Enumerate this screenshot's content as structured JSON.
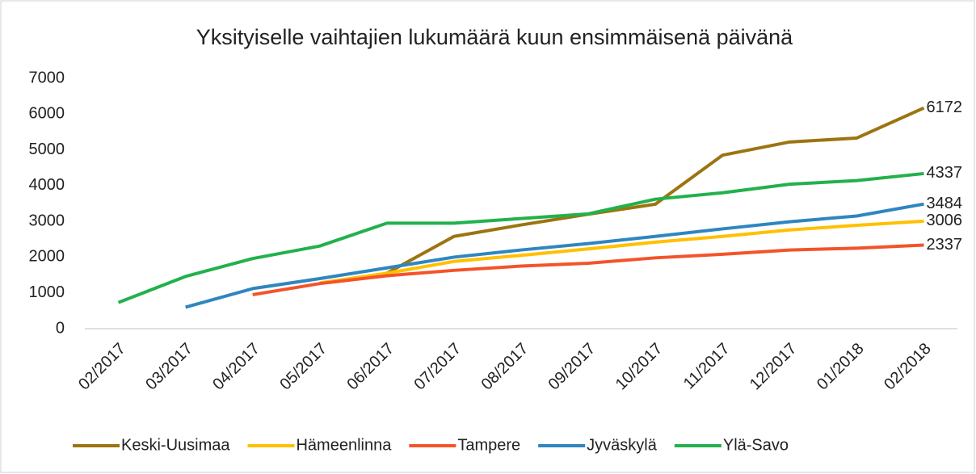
{
  "chart_data": {
    "type": "line",
    "title": "Yksityiselle vaihtajien lukumäärä kuun ensimmäisenä päivänä",
    "categories": [
      "02/2017",
      "03/2017",
      "04/2017",
      "05/2017",
      "06/2017",
      "07/2017",
      "08/2017",
      "09/2017",
      "10/2017",
      "11/2017",
      "12/2017",
      "01/2018",
      "02/2018"
    ],
    "series": [
      {
        "name": "Keski-Uusimaa",
        "color": "#9c7410",
        "values": [
          null,
          null,
          null,
          null,
          1550,
          2580,
          2900,
          3200,
          3480,
          4850,
          5220,
          5330,
          6172
        ]
      },
      {
        "name": "Hämeenlinna",
        "color": "#ffc000",
        "values": [
          null,
          null,
          null,
          1280,
          1550,
          1880,
          2050,
          2230,
          2420,
          2580,
          2760,
          2890,
          3006
        ]
      },
      {
        "name": "Tampere",
        "color": "#f4532a",
        "values": [
          null,
          null,
          950,
          1260,
          1480,
          1630,
          1750,
          1830,
          1980,
          2080,
          2200,
          2250,
          2337
        ]
      },
      {
        "name": "Jyväskylä",
        "color": "#2e86c1",
        "values": [
          null,
          600,
          1120,
          1400,
          1700,
          2000,
          2200,
          2380,
          2580,
          2790,
          2990,
          3150,
          3484
        ]
      },
      {
        "name": "Ylä-Savo",
        "color": "#22b14c",
        "values": [
          730,
          1460,
          1960,
          2310,
          2950,
          2950,
          3080,
          3210,
          3620,
          3800,
          4040,
          4140,
          4337
        ]
      }
    ],
    "ylim": [
      0,
      7000
    ],
    "yticks": [
      0,
      1000,
      2000,
      3000,
      4000,
      5000,
      6000,
      7000
    ],
    "legend": "bottom"
  }
}
